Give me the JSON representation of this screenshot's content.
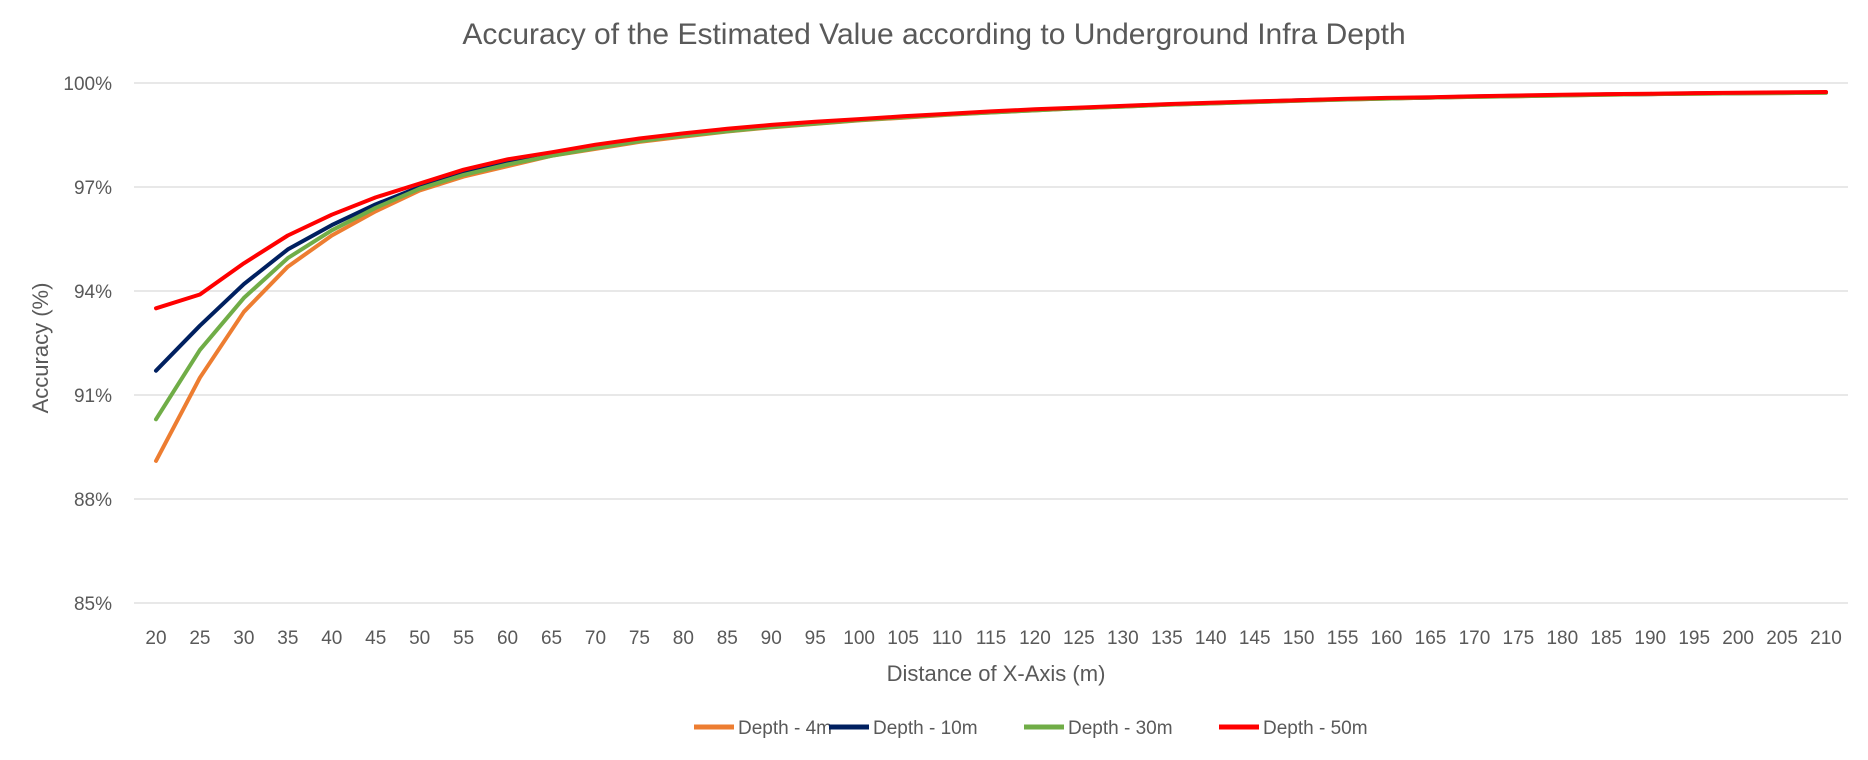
{
  "chart_data": {
    "type": "line",
    "title": "Accuracy of the Estimated Value according to Underground Infra Depth",
    "xlabel": "Distance of X-Axis (m)",
    "ylabel": "Accuracy (%)",
    "ylim": [
      85,
      100
    ],
    "yticks": [
      "85%",
      "88%",
      "91%",
      "94%",
      "97%",
      "100%"
    ],
    "grid": true,
    "legend_position": "bottom",
    "x": [
      20,
      25,
      30,
      35,
      40,
      45,
      50,
      55,
      60,
      65,
      70,
      75,
      80,
      85,
      90,
      95,
      100,
      105,
      110,
      115,
      120,
      125,
      130,
      135,
      140,
      145,
      150,
      155,
      160,
      165,
      170,
      175,
      180,
      185,
      190,
      195,
      200,
      205,
      210
    ],
    "series": [
      {
        "name": "Depth - 4m",
        "color": "#ED7D31",
        "values": [
          89.1,
          91.5,
          93.4,
          94.7,
          95.6,
          96.3,
          96.9,
          97.3,
          97.6,
          97.9,
          98.1,
          98.3,
          98.45,
          98.6,
          98.72,
          98.82,
          98.92,
          99.0,
          99.08,
          99.15,
          99.21,
          99.27,
          99.32,
          99.37,
          99.41,
          99.45,
          99.49,
          99.52,
          99.55,
          99.58,
          99.6,
          99.62,
          99.64,
          99.66,
          99.68,
          99.69,
          99.7,
          99.71,
          99.72
        ]
      },
      {
        "name": "Depth - 10m",
        "color": "#002060",
        "values": [
          91.7,
          93.0,
          94.2,
          95.2,
          95.9,
          96.5,
          97.0,
          97.4,
          97.7,
          97.95,
          98.15,
          98.35,
          98.5,
          98.63,
          98.75,
          98.85,
          98.94,
          99.02,
          99.1,
          99.16,
          99.22,
          99.28,
          99.33,
          99.38,
          99.42,
          99.46,
          99.5,
          99.53,
          99.56,
          99.58,
          99.61,
          99.63,
          99.65,
          99.67,
          99.68,
          99.7,
          99.71,
          99.72,
          99.73
        ]
      },
      {
        "name": "Depth - 30m",
        "color": "#70AD47",
        "values": [
          90.3,
          92.3,
          93.8,
          94.95,
          95.75,
          96.4,
          96.95,
          97.35,
          97.65,
          97.9,
          98.12,
          98.32,
          98.48,
          98.61,
          98.73,
          98.83,
          98.93,
          99.01,
          99.09,
          99.15,
          99.21,
          99.27,
          99.32,
          99.37,
          99.41,
          99.45,
          99.49,
          99.52,
          99.55,
          99.58,
          99.6,
          99.62,
          99.64,
          99.66,
          99.68,
          99.69,
          99.7,
          99.71,
          99.72
        ]
      },
      {
        "name": "Depth - 50m",
        "color": "#FF0000",
        "values": [
          93.5,
          93.9,
          94.8,
          95.6,
          96.2,
          96.7,
          97.1,
          97.5,
          97.8,
          98.0,
          98.22,
          98.4,
          98.55,
          98.68,
          98.79,
          98.88,
          98.96,
          99.04,
          99.11,
          99.18,
          99.24,
          99.29,
          99.34,
          99.39,
          99.43,
          99.47,
          99.5,
          99.54,
          99.57,
          99.59,
          99.62,
          99.64,
          99.66,
          99.68,
          99.69,
          99.71,
          99.72,
          99.73,
          99.74
        ]
      }
    ]
  }
}
